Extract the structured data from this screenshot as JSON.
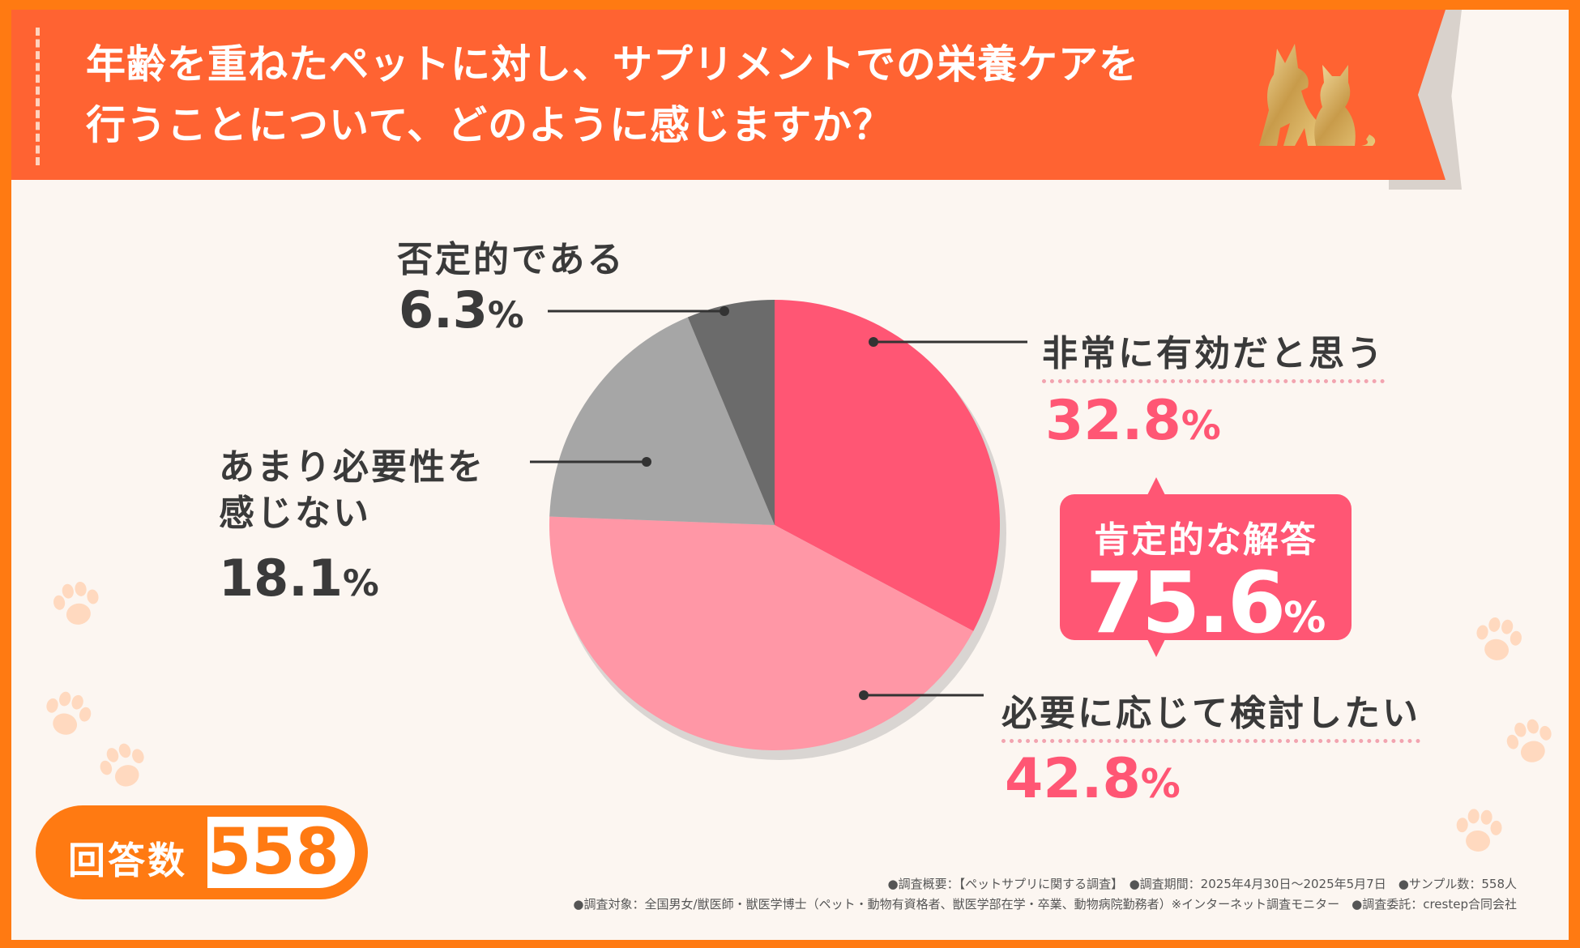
{
  "header": {
    "title_line1": "年齢を重ねたペットに対し、サプリメントでの栄養ケアを",
    "title_line2": "行うことについて、どのように感じますか？"
  },
  "chart_data": {
    "type": "pie",
    "slices": [
      {
        "label": "非常に有効だと思う",
        "value": 32.8,
        "color": "#ff5674"
      },
      {
        "label": "必要に応じて検討したい",
        "value": 42.8,
        "color": "#ff97a6"
      },
      {
        "label": "あまり必要性を感じない",
        "value": 18.1,
        "color": "#a6a6a6"
      },
      {
        "label": "否定的である",
        "value": 6.3,
        "color": "#6b6b6b"
      }
    ],
    "summary": {
      "label": "肯定的な解答",
      "value": "75.6",
      "unit": "%"
    }
  },
  "labels": {
    "very_effective": {
      "text": "非常に有効だと思う",
      "num": "32.8",
      "unit": "%"
    },
    "consider": {
      "text": "必要に応じて検討したい",
      "num": "42.8",
      "unit": "%"
    },
    "not_needed_1": "あまり必要性を",
    "not_needed_2": "感じない",
    "not_needed": {
      "num": "18.1",
      "unit": "%"
    },
    "negative": {
      "text": "否定的である",
      "num": "6.3",
      "unit": "%"
    }
  },
  "responses": {
    "label": "回答数",
    "count": "558"
  },
  "footer": {
    "line1": "●調査概要：【ペットサプリに関する調査】　●調査期間：2025年4月30日～2025年5月7日　●サンプル数：558人",
    "line2": "●調査対象：全国男女/獣医師・獣医学博士（ペット・動物有資格者、獣医学部在学・卒業、動物病院勤務者）※インターネット調査モニター　●調査委託：crestep合同会社"
  },
  "colors": {
    "header": "#ff6332",
    "accent": "#ff7a12",
    "positive": "#ff5674",
    "text": "#3a3a3a"
  }
}
